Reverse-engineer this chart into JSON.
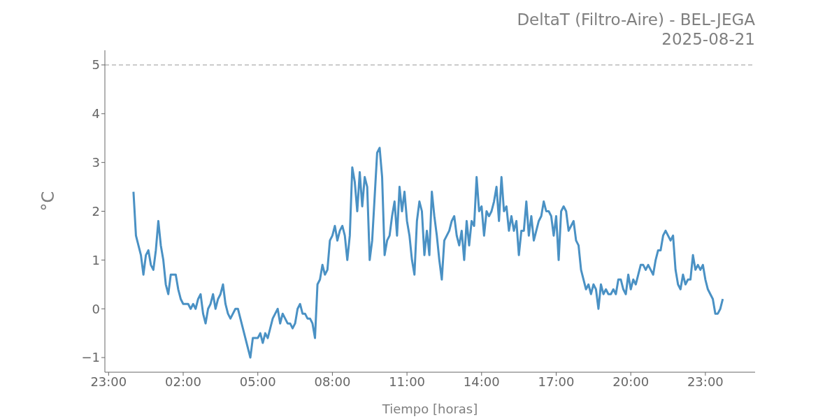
{
  "chart_data": {
    "type": "line",
    "title": "DeltaT (Filtro-Aire) - BEL-JEGA",
    "subtitle": "2025-08-21",
    "xlabel": "Tiempo [horas]",
    "ylabel": "°C",
    "color": "#4a91c4",
    "x": [
      "2025-08-21T00:00",
      "2025-08-21T00:06",
      "2025-08-21T00:12",
      "2025-08-21T00:18",
      "2025-08-21T00:24",
      "2025-08-21T00:30",
      "2025-08-21T00:36",
      "2025-08-21T00:42",
      "2025-08-21T00:48",
      "2025-08-21T00:54",
      "2025-08-21T01:00",
      "2025-08-21T01:06",
      "2025-08-21T01:12",
      "2025-08-21T01:18",
      "2025-08-21T01:24",
      "2025-08-21T01:30",
      "2025-08-21T01:36",
      "2025-08-21T01:42",
      "2025-08-21T01:48",
      "2025-08-21T01:54",
      "2025-08-21T02:00",
      "2025-08-21T02:06",
      "2025-08-21T02:12",
      "2025-08-21T02:18",
      "2025-08-21T02:24",
      "2025-08-21T02:30",
      "2025-08-21T02:36",
      "2025-08-21T02:42",
      "2025-08-21T02:48",
      "2025-08-21T02:54",
      "2025-08-21T03:00",
      "2025-08-21T03:06",
      "2025-08-21T03:12",
      "2025-08-21T03:18",
      "2025-08-21T03:24",
      "2025-08-21T03:30",
      "2025-08-21T03:36",
      "2025-08-21T03:42",
      "2025-08-21T03:48",
      "2025-08-21T03:54",
      "2025-08-21T04:00",
      "2025-08-21T04:06",
      "2025-08-21T04:12",
      "2025-08-21T04:18",
      "2025-08-21T04:24",
      "2025-08-21T04:30",
      "2025-08-21T04:36",
      "2025-08-21T04:42",
      "2025-08-21T04:48",
      "2025-08-21T04:54",
      "2025-08-21T05:00",
      "2025-08-21T05:06",
      "2025-08-21T05:12",
      "2025-08-21T05:18",
      "2025-08-21T05:24",
      "2025-08-21T05:30",
      "2025-08-21T05:36",
      "2025-08-21T05:42",
      "2025-08-21T05:48",
      "2025-08-21T05:54",
      "2025-08-21T06:00",
      "2025-08-21T06:06",
      "2025-08-21T06:12",
      "2025-08-21T06:18",
      "2025-08-21T06:24",
      "2025-08-21T06:30",
      "2025-08-21T06:36",
      "2025-08-21T06:42",
      "2025-08-21T06:48",
      "2025-08-21T06:54",
      "2025-08-21T07:00",
      "2025-08-21T07:06",
      "2025-08-21T07:12",
      "2025-08-21T07:18",
      "2025-08-21T07:24",
      "2025-08-21T07:30",
      "2025-08-21T07:36",
      "2025-08-21T07:42",
      "2025-08-21T07:48",
      "2025-08-21T07:54",
      "2025-08-21T08:00",
      "2025-08-21T08:06",
      "2025-08-21T08:12",
      "2025-08-21T08:18",
      "2025-08-21T08:24",
      "2025-08-21T08:30",
      "2025-08-21T08:36",
      "2025-08-21T08:42",
      "2025-08-21T08:48",
      "2025-08-21T08:54",
      "2025-08-21T09:00",
      "2025-08-21T09:06",
      "2025-08-21T09:12",
      "2025-08-21T09:18",
      "2025-08-21T09:24",
      "2025-08-21T09:30",
      "2025-08-21T09:36",
      "2025-08-21T09:42",
      "2025-08-21T09:48",
      "2025-08-21T09:54",
      "2025-08-21T10:00",
      "2025-08-21T10:06",
      "2025-08-21T10:12",
      "2025-08-21T10:18",
      "2025-08-21T10:24",
      "2025-08-21T10:30",
      "2025-08-21T10:36",
      "2025-08-21T10:42",
      "2025-08-21T10:48",
      "2025-08-21T10:54",
      "2025-08-21T11:00",
      "2025-08-21T11:06",
      "2025-08-21T11:12",
      "2025-08-21T11:18",
      "2025-08-21T11:24",
      "2025-08-21T11:30",
      "2025-08-21T11:36",
      "2025-08-21T11:42",
      "2025-08-21T11:48",
      "2025-08-21T11:54",
      "2025-08-21T12:00",
      "2025-08-21T12:06",
      "2025-08-21T12:12",
      "2025-08-21T12:18",
      "2025-08-21T12:24",
      "2025-08-21T12:30",
      "2025-08-21T12:36",
      "2025-08-21T12:42",
      "2025-08-21T12:48",
      "2025-08-21T12:54",
      "2025-08-21T13:00",
      "2025-08-21T13:06",
      "2025-08-21T13:12",
      "2025-08-21T13:18",
      "2025-08-21T13:24",
      "2025-08-21T13:30",
      "2025-08-21T13:36",
      "2025-08-21T13:42",
      "2025-08-21T13:48",
      "2025-08-21T13:54",
      "2025-08-21T14:00",
      "2025-08-21T14:06",
      "2025-08-21T14:12",
      "2025-08-21T14:18",
      "2025-08-21T14:24",
      "2025-08-21T14:30",
      "2025-08-21T14:36",
      "2025-08-21T14:42",
      "2025-08-21T14:48",
      "2025-08-21T14:54",
      "2025-08-21T15:00",
      "2025-08-21T15:06",
      "2025-08-21T15:12",
      "2025-08-21T15:18",
      "2025-08-21T15:24",
      "2025-08-21T15:30",
      "2025-08-21T15:36",
      "2025-08-21T15:42",
      "2025-08-21T15:48",
      "2025-08-21T15:54",
      "2025-08-21T16:00",
      "2025-08-21T16:06",
      "2025-08-21T16:12",
      "2025-08-21T16:18",
      "2025-08-21T16:24",
      "2025-08-21T16:30",
      "2025-08-21T16:36",
      "2025-08-21T16:42",
      "2025-08-21T16:48",
      "2025-08-21T16:54",
      "2025-08-21T17:00",
      "2025-08-21T17:06",
      "2025-08-21T17:12",
      "2025-08-21T17:18",
      "2025-08-21T17:24",
      "2025-08-21T17:30",
      "2025-08-21T17:36",
      "2025-08-21T17:42",
      "2025-08-21T17:48",
      "2025-08-21T17:54",
      "2025-08-21T18:00",
      "2025-08-21T18:06",
      "2025-08-21T18:12",
      "2025-08-21T18:18",
      "2025-08-21T18:24",
      "2025-08-21T18:30",
      "2025-08-21T18:36",
      "2025-08-21T18:42",
      "2025-08-21T18:48",
      "2025-08-21T18:54",
      "2025-08-21T19:00",
      "2025-08-21T19:06",
      "2025-08-21T19:12",
      "2025-08-21T19:18",
      "2025-08-21T19:24",
      "2025-08-21T19:30",
      "2025-08-21T19:36",
      "2025-08-21T19:42",
      "2025-08-21T19:48",
      "2025-08-21T19:54",
      "2025-08-21T20:00",
      "2025-08-21T20:06",
      "2025-08-21T20:12",
      "2025-08-21T20:18",
      "2025-08-21T20:24",
      "2025-08-21T20:30",
      "2025-08-21T20:36",
      "2025-08-21T20:42",
      "2025-08-21T20:48",
      "2025-08-21T20:54",
      "2025-08-21T21:00",
      "2025-08-21T21:06",
      "2025-08-21T21:12",
      "2025-08-21T21:18",
      "2025-08-21T21:24",
      "2025-08-21T21:30",
      "2025-08-21T21:36",
      "2025-08-21T21:42",
      "2025-08-21T21:48",
      "2025-08-21T21:54",
      "2025-08-21T22:00",
      "2025-08-21T22:06",
      "2025-08-21T22:12",
      "2025-08-21T22:18",
      "2025-08-21T22:24",
      "2025-08-21T22:30",
      "2025-08-21T22:36",
      "2025-08-21T22:42",
      "2025-08-21T22:48",
      "2025-08-21T22:54",
      "2025-08-21T23:00",
      "2025-08-21T23:06",
      "2025-08-21T23:12",
      "2025-08-21T23:18",
      "2025-08-21T23:24",
      "2025-08-21T23:30",
      "2025-08-21T23:36",
      "2025-08-21T23:42"
    ],
    "values": [
      2.4,
      1.5,
      1.3,
      1.1,
      0.7,
      1.1,
      1.2,
      0.9,
      0.8,
      1.2,
      1.8,
      1.3,
      1.0,
      0.5,
      0.3,
      0.7,
      0.7,
      0.7,
      0.4,
      0.2,
      0.1,
      0.1,
      0.1,
      0.0,
      0.1,
      0.0,
      0.2,
      0.3,
      -0.1,
      -0.3,
      0.0,
      0.1,
      0.3,
      0.0,
      0.2,
      0.3,
      0.5,
      0.1,
      -0.1,
      -0.2,
      -0.1,
      0.0,
      0.0,
      -0.2,
      -0.4,
      -0.6,
      -0.8,
      -1.0,
      -0.6,
      -0.6,
      -0.6,
      -0.5,
      -0.7,
      -0.5,
      -0.6,
      -0.4,
      -0.2,
      -0.1,
      0.0,
      -0.3,
      -0.1,
      -0.2,
      -0.3,
      -0.3,
      -0.4,
      -0.3,
      0.0,
      0.1,
      -0.1,
      -0.1,
      -0.2,
      -0.2,
      -0.3,
      -0.6,
      0.5,
      0.6,
      0.9,
      0.7,
      0.8,
      1.4,
      1.5,
      1.7,
      1.4,
      1.6,
      1.7,
      1.5,
      1.0,
      1.5,
      2.9,
      2.6,
      2.0,
      2.8,
      2.1,
      2.7,
      2.5,
      1.0,
      1.4,
      2.3,
      3.2,
      3.3,
      2.7,
      1.1,
      1.4,
      1.5,
      1.9,
      2.2,
      1.5,
      2.5,
      2.0,
      2.4,
      1.8,
      1.5,
      1.0,
      0.7,
      1.8,
      2.2,
      2.0,
      1.1,
      1.6,
      1.1,
      2.4,
      1.9,
      1.5,
      1.0,
      0.6,
      1.4,
      1.5,
      1.6,
      1.8,
      1.9,
      1.5,
      1.3,
      1.6,
      1.0,
      1.8,
      1.3,
      1.8,
      1.7,
      2.7,
      2.0,
      2.1,
      1.5,
      2.0,
      1.9,
      2.0,
      2.2,
      2.5,
      1.8,
      2.7,
      2.0,
      2.1,
      1.6,
      1.9,
      1.6,
      1.8,
      1.1,
      1.6,
      1.6,
      2.2,
      1.5,
      1.9,
      1.4,
      1.6,
      1.8,
      1.9,
      2.2,
      2.0,
      2.0,
      1.9,
      1.5,
      1.9,
      1.0,
      2.0,
      2.1,
      2.0,
      1.6,
      1.7,
      1.8,
      1.4,
      1.3,
      0.8,
      0.6,
      0.4,
      0.5,
      0.3,
      0.5,
      0.4,
      0.0,
      0.5,
      0.3,
      0.4,
      0.3,
      0.3,
      0.4,
      0.3,
      0.6,
      0.6,
      0.4,
      0.3,
      0.7,
      0.4,
      0.6,
      0.5,
      0.7,
      0.9,
      0.9,
      0.8,
      0.9,
      0.8,
      0.7,
      1.0,
      1.2,
      1.2,
      1.5,
      1.6,
      1.5,
      1.4,
      1.5,
      0.8,
      0.5,
      0.4,
      0.7,
      0.5,
      0.6,
      0.6,
      1.1,
      0.8,
      0.9,
      0.8,
      0.9,
      0.6,
      0.4,
      0.3,
      0.2,
      -0.1,
      -0.1,
      0.0,
      0.2
    ],
    "xlim": [
      "2025-08-20T22:51",
      "2025-08-22T01:00"
    ],
    "ylim": [
      -1.3,
      5.3
    ],
    "xticks": [
      {
        "value": "2025-08-20T23:00",
        "label": "23:00"
      },
      {
        "value": "2025-08-21T02:00",
        "label": "02:00"
      },
      {
        "value": "2025-08-21T05:00",
        "label": "05:00"
      },
      {
        "value": "2025-08-21T08:00",
        "label": "08:00"
      },
      {
        "value": "2025-08-21T11:00",
        "label": "11:00"
      },
      {
        "value": "2025-08-21T14:00",
        "label": "14:00"
      },
      {
        "value": "2025-08-21T17:00",
        "label": "17:00"
      },
      {
        "value": "2025-08-21T20:00",
        "label": "20:00"
      },
      {
        "value": "2025-08-21T23:00",
        "label": "23:00"
      }
    ],
    "yticks": [
      {
        "value": -1,
        "label": "−1"
      },
      0,
      1,
      2,
      3,
      4,
      5
    ],
    "ref_lines": [
      {
        "axis": "y",
        "value": 5,
        "color": "#bbbbbb",
        "line_style": "dashed"
      }
    ]
  }
}
